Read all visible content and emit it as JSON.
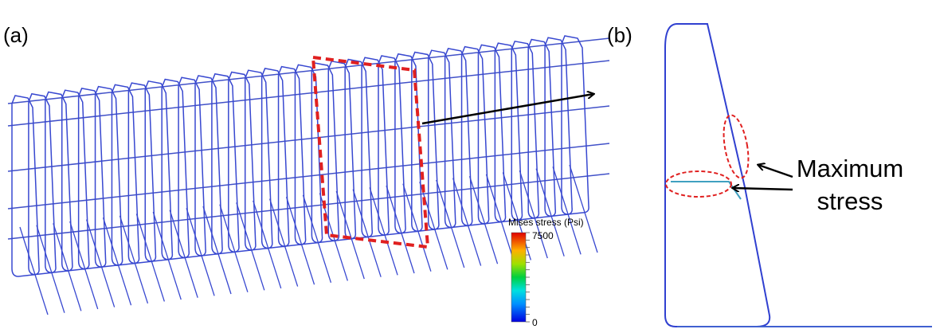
{
  "panels": {
    "a": {
      "label": "(a)",
      "colorbar": {
        "title": "Mises stress (Psi)",
        "max_label": "7500",
        "min_label": "0"
      }
    },
    "b": {
      "label": "(b)",
      "annotation": {
        "line1": "Maximum",
        "line2": "stress"
      }
    }
  }
}
